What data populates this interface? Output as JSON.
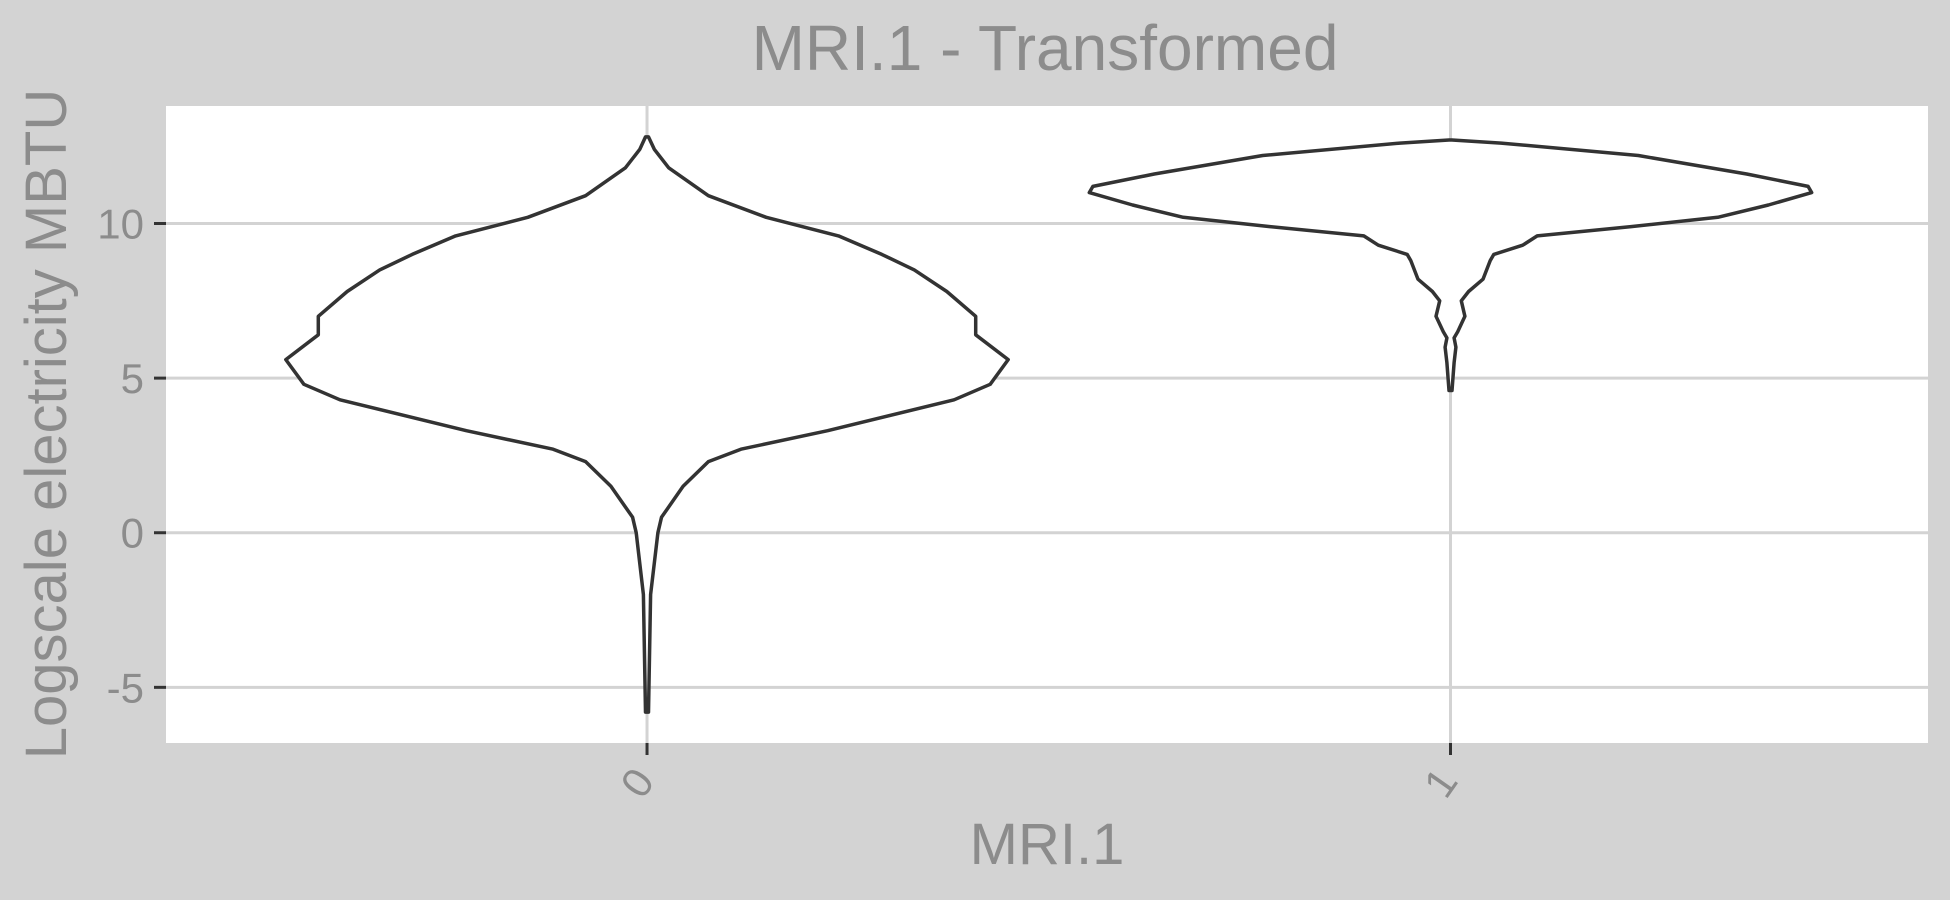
{
  "chart_data": {
    "type": "violin",
    "title": "MRI.1 - Transformed",
    "xlabel": "MRI.1",
    "ylabel": "Logscale electricity MBTU",
    "categories": [
      "0",
      "1"
    ],
    "y_ticks": [
      "-5",
      "0",
      "5",
      "10"
    ],
    "y_tick_values": [
      -5,
      0,
      5,
      10
    ],
    "ylim": [
      -6.8,
      13.8
    ],
    "grid": true,
    "x_tick_label_rotation": "slanted",
    "colors": {
      "background": "#d3d3d3",
      "panel": "#ffffff",
      "grid": "#d3d3d3",
      "outline": "#333333",
      "text": "#8c8c8c"
    },
    "series": [
      {
        "category": "0",
        "y_range": [
          -5.8,
          12.8
        ],
        "density_profile": [
          [
            -5.8,
            0.0
          ],
          [
            -2.0,
            0.01
          ],
          [
            0.0,
            0.03
          ],
          [
            0.5,
            0.04
          ],
          [
            1.5,
            0.1
          ],
          [
            2.3,
            0.17
          ],
          [
            2.7,
            0.26
          ],
          [
            3.3,
            0.5
          ],
          [
            4.3,
            0.85
          ],
          [
            4.8,
            0.95
          ],
          [
            5.6,
            1.0
          ],
          [
            6.4,
            0.91
          ],
          [
            7.0,
            0.91
          ],
          [
            7.8,
            0.83
          ],
          [
            8.5,
            0.74
          ],
          [
            9.0,
            0.65
          ],
          [
            9.6,
            0.53
          ],
          [
            10.2,
            0.33
          ],
          [
            10.9,
            0.17
          ],
          [
            11.8,
            0.06
          ],
          [
            12.4,
            0.02
          ],
          [
            12.8,
            0.0
          ]
        ]
      },
      {
        "category": "1",
        "y_range": [
          4.6,
          12.7
        ],
        "density_profile": [
          [
            4.6,
            0.0
          ],
          [
            5.5,
            0.01
          ],
          [
            6.0,
            0.015
          ],
          [
            6.3,
            0.01
          ],
          [
            6.5,
            0.02
          ],
          [
            7.0,
            0.04
          ],
          [
            7.5,
            0.03
          ],
          [
            7.8,
            0.05
          ],
          [
            8.2,
            0.09
          ],
          [
            8.8,
            0.11
          ],
          [
            9.0,
            0.12
          ],
          [
            9.3,
            0.2
          ],
          [
            9.6,
            0.24
          ],
          [
            9.9,
            0.5
          ],
          [
            10.2,
            0.74
          ],
          [
            10.6,
            0.88
          ],
          [
            11.0,
            1.0
          ],
          [
            11.2,
            0.99
          ],
          [
            11.6,
            0.82
          ],
          [
            12.2,
            0.52
          ],
          [
            12.6,
            0.14
          ],
          [
            12.7,
            0.0
          ]
        ]
      }
    ]
  }
}
